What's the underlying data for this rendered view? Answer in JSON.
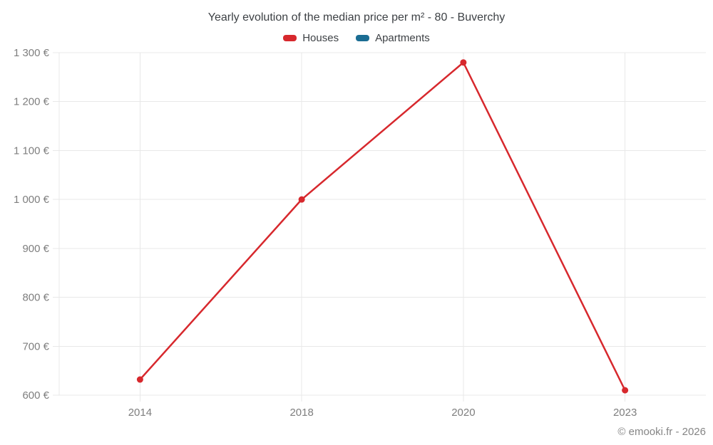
{
  "header": {
    "title": "Yearly evolution of the median price per m² - 80 - Buverchy"
  },
  "legend": [
    {
      "label": "Houses",
      "color": "#d7282d"
    },
    {
      "label": "Apartments",
      "color": "#1b6d93"
    }
  ],
  "footer": {
    "copyright": "© emooki.fr - 2026"
  },
  "colors": {
    "houses": "#d7282d",
    "apartments": "#1b6d93",
    "gridline": "#e8e8e8",
    "axis_label": "#7e7e7e",
    "title_text": "#3d4145"
  },
  "chart_data": {
    "type": "line",
    "title": "Yearly evolution of the median price per m² - 80 - Buverchy",
    "categories": [
      "2014",
      "2018",
      "2020",
      "2023"
    ],
    "series": [
      {
        "name": "Houses",
        "color": "#d7282d",
        "values": [
          632,
          1000,
          1280,
          610
        ]
      },
      {
        "name": "Apartments",
        "color": "#1b6d93",
        "values": []
      }
    ],
    "xlabel": "",
    "ylabel": "",
    "ylim": [
      600,
      1300
    ],
    "ytick_step": 100,
    "ytick_labels": [
      "600 €",
      "700 €",
      "800 €",
      "900 €",
      "1 000 €",
      "1 100 €",
      "1 200 €",
      "1 300 €"
    ],
    "grid": true,
    "legend_position": "top",
    "currency_suffix": " €"
  }
}
